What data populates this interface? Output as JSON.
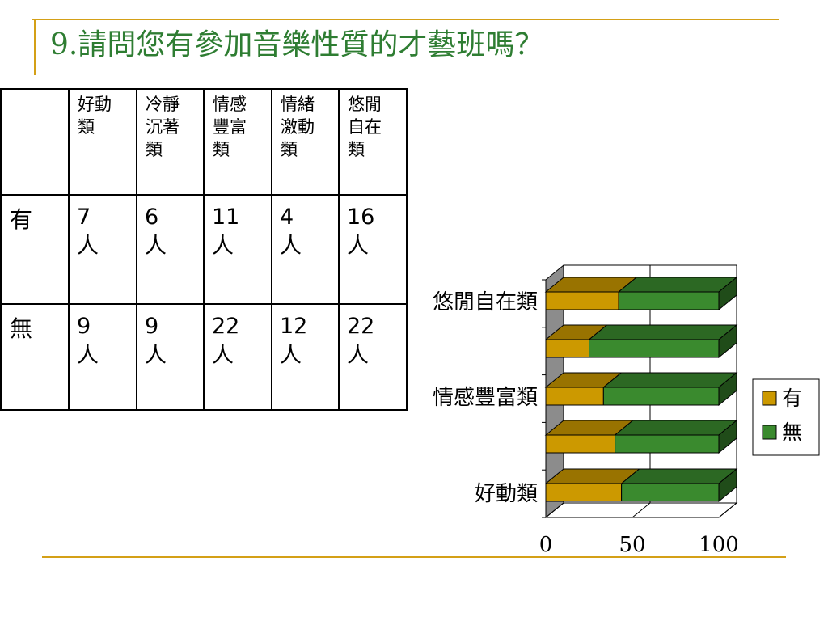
{
  "slide": {
    "title": "9.請問您有參加音樂性質的才藝班嗎？"
  },
  "table": {
    "headers": [
      "",
      "好動類",
      "冷靜沉著類",
      "情感豐富類",
      "情緒激動類",
      "悠閒自在類"
    ],
    "rows": [
      {
        "label": "有",
        "cells": [
          "7人",
          "6人",
          "11人",
          "4人",
          "16人"
        ]
      },
      {
        "label": "無",
        "cells": [
          "9人",
          "9人",
          "22人",
          "12人",
          "22人"
        ]
      }
    ]
  },
  "chart_data": {
    "type": "bar",
    "orientation": "horizontal",
    "stacked": "percent",
    "three_d": true,
    "categories": [
      "好動類",
      "冷靜沉著類",
      "情感豐富類",
      "情緒激動類",
      "悠閒自在類"
    ],
    "category_tick_labels": [
      "好動類",
      "",
      "情感豐富類",
      "",
      "悠閒自在類"
    ],
    "series": [
      {
        "name": "有",
        "values": [
          7,
          6,
          11,
          4,
          16
        ],
        "color": "#cc9900"
      },
      {
        "name": "無",
        "values": [
          9,
          9,
          22,
          12,
          22
        ],
        "color": "#3a8a2e"
      }
    ],
    "x_ticks": [
      "0",
      "50",
      "100"
    ],
    "xlim": [
      0,
      100
    ],
    "grid": true,
    "legend": "right",
    "title": "",
    "xlabel": "",
    "ylabel": ""
  }
}
